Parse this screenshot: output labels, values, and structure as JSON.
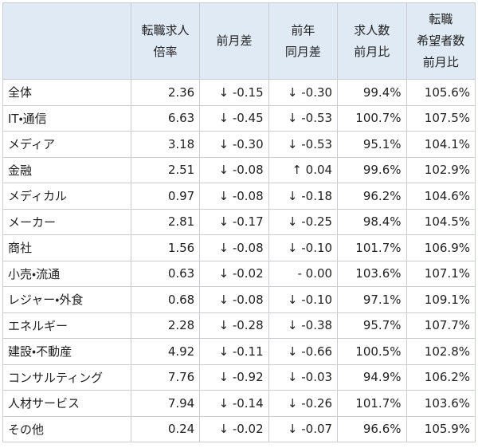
{
  "table": {
    "header": [
      [
        "転職求人",
        "倍率"
      ],
      [
        "前月差"
      ],
      [
        "前年",
        "同月差"
      ],
      [
        "求人数",
        "前月比"
      ],
      [
        "転職",
        "希望者数",
        "前月比"
      ]
    ],
    "rows": [
      [
        "全体",
        "2.36",
        "↓ -0.15",
        "↓ -0.30",
        "99.4%",
        "105.6%"
      ],
      [
        "IT・通信",
        "6.63",
        "↓ -0.45",
        "↓ -0.53",
        "100.7%",
        "107.5%"
      ],
      [
        "メディア",
        "3.18",
        "↓ -0.30",
        "↓ -0.53",
        "95.1%",
        "104.1%"
      ],
      [
        "金融",
        "2.51",
        "↓ -0.08",
        "↑ 0.04",
        "99.6%",
        "102.9%"
      ],
      [
        "メディカル",
        "0.97",
        "↓ -0.08",
        "↓ -0.18",
        "96.2%",
        "104.6%"
      ],
      [
        "メーカー",
        "2.81",
        "↓ -0.17",
        "↓ -0.25",
        "98.4%",
        "104.5%"
      ],
      [
        "商社",
        "1.56",
        "↓ -0.08",
        "↓ -0.10",
        "101.7%",
        "106.9%"
      ],
      [
        "小売・流通",
        "0.63",
        "↓ -0.02",
        "- 0.00",
        "103.6%",
        "107.1%"
      ],
      [
        "レジャー・外食",
        "0.68",
        "↓ -0.08",
        "↓ -0.10",
        "97.1%",
        "109.1%"
      ],
      [
        "エネルギー",
        "2.28",
        "↓ -0.28",
        "↓ -0.38",
        "95.7%",
        "107.7%"
      ],
      [
        "建設・不動産",
        "4.92",
        "↓ -0.11",
        "↓ -0.66",
        "100.5%",
        "102.8%"
      ],
      [
        "コンサルティング",
        "7.76",
        "↓ -0.92",
        "↓ -0.03",
        "94.9%",
        "106.2%"
      ],
      [
        "人材サービス",
        "7.94",
        "↓ -0.14",
        "↓ -0.26",
        "101.7%",
        "103.6%"
      ],
      [
        "その他",
        "0.24",
        "↓ -0.02",
        "↓ -0.07",
        "96.6%",
        "105.9%"
      ]
    ]
  }
}
